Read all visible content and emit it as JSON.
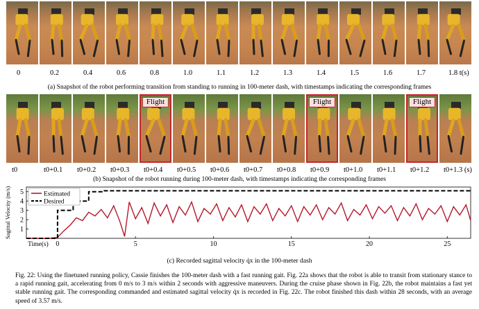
{
  "figure_a": {
    "timestamps": [
      "0",
      "0.2",
      "0.4",
      "0.6",
      "0.8",
      "1.0",
      "1.1",
      "1.2",
      "1.3",
      "1.4",
      "1.5",
      "1.6",
      "1.7",
      "1.8 t(s)"
    ],
    "caption": "(a) Snapshot of the robot performing transition from standing to running in 100-meter dash, with timestamps indicating the corresponding frames"
  },
  "figure_b": {
    "timestamps": [
      "t0",
      "t0+0.1",
      "t0+0.2",
      "t0+0.3",
      "t0+0.4",
      "t0+0.5",
      "t0+0.6",
      "t0+0.7",
      "t0+0.8",
      "t0+0.9",
      "t0+1.0",
      "t0+1.1",
      "t0+1.2",
      "t0+1.3 (s)"
    ],
    "flight_label": "Flight",
    "flight_frames": [
      4,
      9,
      12
    ],
    "caption": "(b) Snapshot of the robot running during 100-meter dash, with timestamps indicating the corresponding frames"
  },
  "chart_data": {
    "type": "line",
    "ylabel": "Sagittal Velocity (m/s)",
    "xlabel": "Time(s)",
    "xlim": [
      -2,
      26.5
    ],
    "ylim": [
      0,
      5.5
    ],
    "xticks": [
      0,
      5,
      10,
      15,
      20,
      25
    ],
    "yticks": [
      1,
      2,
      3,
      4,
      5
    ],
    "legend_position": "top-left",
    "series": [
      {
        "name": "Estimated",
        "color": "#b5172a",
        "style": "solid",
        "x": [
          -2,
          -0.5,
          0,
          0.4,
          0.8,
          1.2,
          1.6,
          2,
          2.4,
          2.8,
          3.2,
          3.6,
          4,
          4.3,
          4.6,
          5,
          5.4,
          5.8,
          6.2,
          6.6,
          7,
          7.4,
          7.8,
          8.2,
          8.6,
          9,
          9.4,
          9.8,
          10.2,
          10.6,
          11,
          11.4,
          11.8,
          12.2,
          12.6,
          13,
          13.4,
          13.8,
          14.2,
          14.6,
          15,
          15.4,
          15.8,
          16.2,
          16.6,
          17,
          17.4,
          17.8,
          18.2,
          18.6,
          19,
          19.4,
          19.8,
          20.2,
          20.6,
          21,
          21.4,
          21.8,
          22.2,
          22.6,
          23,
          23.4,
          23.8,
          24.2,
          24.6,
          25,
          25.4,
          25.8,
          26.2,
          26.5
        ],
        "y": [
          0,
          0,
          0.1,
          0.8,
          1.4,
          2.2,
          1.9,
          2.8,
          2.4,
          3.1,
          2.2,
          3.5,
          1.8,
          0.2,
          3.9,
          2.1,
          3.3,
          1.6,
          3.8,
          2.4,
          3.6,
          1.7,
          3.4,
          2.5,
          3.9,
          1.8,
          3.2,
          2.6,
          3.7,
          1.9,
          3.3,
          2.3,
          3.6,
          1.8,
          3.4,
          2.6,
          3.7,
          1.9,
          3.2,
          2.4,
          3.5,
          1.8,
          3.4,
          2.5,
          3.6,
          2,
          3.3,
          2.6,
          3.8,
          1.9,
          3.1,
          2.5,
          3.6,
          2.1,
          3.4,
          2.7,
          3.5,
          1.9,
          3.3,
          2.4,
          3.7,
          2,
          3.2,
          2.6,
          3.5,
          1.8,
          3.4,
          2.5,
          3.6,
          1.9
        ]
      },
      {
        "name": "Desired",
        "color": "#000000",
        "style": "dashed",
        "x": [
          -2,
          0,
          0,
          1,
          1,
          2,
          2,
          3,
          3,
          26.5
        ],
        "y": [
          0,
          0,
          3,
          3,
          4,
          4,
          5,
          5,
          5.1,
          5.1
        ]
      }
    ]
  },
  "figure_c": {
    "caption": "(c) Recorded sagittal velocity q̇x in the 100-meter dash"
  },
  "paragraph": "Fig. 22: Using the finetuned running policy, Cassie finishes the 100-meter dash with a fast running gait. Fig. 22a shows that the robot is able to transit from stationary stance to a rapid running gait, accelerating from 0 m/s to 3 m/s within 2 seconds with aggressive maneuvers. During the cruise phase shown in Fig. 22b, the robot maintains a fast yet stable running gait. The corresponding commanded and estimated sagittal velocity q̇x is recorded in Fig. 22c. The robot finished this dash within 28 seconds, with an average speed of 3.57 m/s."
}
